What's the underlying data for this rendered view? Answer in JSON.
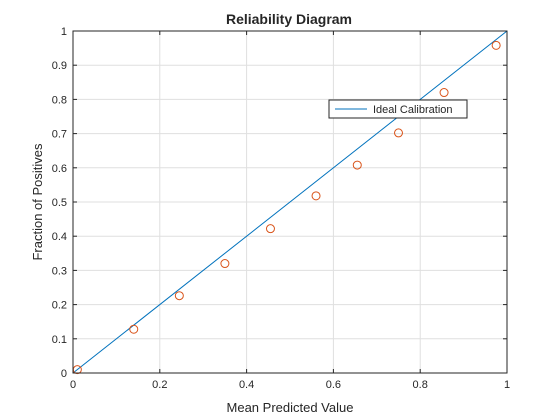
{
  "chart_data": {
    "type": "scatter",
    "title": "Reliability Diagram",
    "xlabel": "Mean Predicted Value",
    "ylabel": "Fraction of Positives",
    "xlim": [
      0,
      1
    ],
    "ylim": [
      0,
      1
    ],
    "grid": true,
    "xticks": [
      "0",
      "0.2",
      "0.4",
      "0.6",
      "0.8",
      "1"
    ],
    "yticks": [
      "0",
      "0.1",
      "0.2",
      "0.3",
      "0.4",
      "0.5",
      "0.6",
      "0.7",
      "0.8",
      "0.9",
      "1"
    ],
    "legend": {
      "placement": "upper-right-inside",
      "entries": [
        "Ideal Calibration"
      ]
    },
    "series": [
      {
        "name": "Ideal Calibration",
        "kind": "line",
        "color": "#0072BD",
        "x": [
          0,
          1
        ],
        "y": [
          0,
          1
        ]
      },
      {
        "kind": "marker",
        "marker": "open-circle",
        "color": "#D95319",
        "x": [
          0.01,
          0.14,
          0.245,
          0.35,
          0.455,
          0.56,
          0.655,
          0.75,
          0.855,
          0.975
        ],
        "y": [
          0.01,
          0.128,
          0.226,
          0.32,
          0.422,
          0.518,
          0.608,
          0.702,
          0.82,
          0.958
        ]
      }
    ]
  }
}
